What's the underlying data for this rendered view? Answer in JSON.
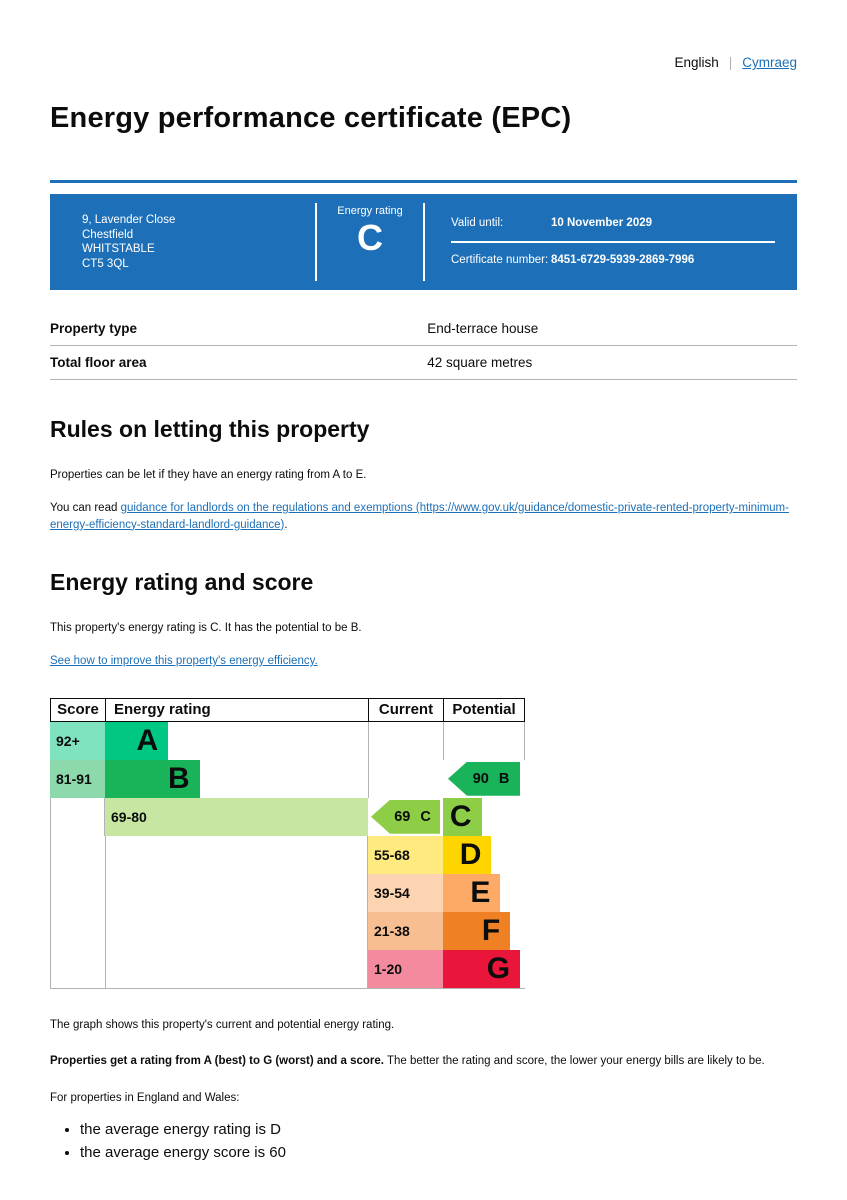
{
  "page": {
    "language_switcher": {
      "current": "English",
      "separator": "|",
      "other": "Cymraeg"
    },
    "title": "Energy performance certificate (EPC)"
  },
  "banner": {
    "background_color": "#1d70b8",
    "address_lines": [
      "9, Lavender Close",
      "Chestfield",
      "WHITSTABLE",
      "CT5 3QL"
    ],
    "energy_rating_label": "Energy rating",
    "energy_rating_value": "C",
    "valid_until_label": "Valid until:",
    "valid_until_value": "10 November 2029",
    "certificate_number_label": "Certificate number:",
    "certificate_number_value": "8451-6729-5939-2869-7996"
  },
  "summary_table": {
    "rows": [
      {
        "label": "Property type",
        "value": "End-terrace house"
      },
      {
        "label": "Total floor area",
        "value": "42 square metres"
      }
    ]
  },
  "rules_section": {
    "heading": "Rules on letting this property",
    "paragraph1": "Properties can be let if they have an energy rating from A to E.",
    "paragraph2_prefix": "You can read ",
    "paragraph2_link": "guidance for landlords on the regulations and exemptions (https://www.gov.uk/guidance/domestic-private-rented-property-minimum-energy-efficiency-standard-landlord-guidance)",
    "paragraph2_suffix": "."
  },
  "rating_section": {
    "heading": "Energy rating and score",
    "paragraph": "This property's energy rating is C. It has the potential to be B.",
    "improve_link": "See how to improve this property's energy efficiency."
  },
  "chart_data": {
    "type": "bar",
    "title": "Energy rating and score",
    "headers": [
      "Score",
      "Energy rating",
      "Current",
      "Potential"
    ],
    "bands": [
      {
        "score_range": "92+",
        "letter": "A",
        "color": "#00c781",
        "tint": "#7fe3c0",
        "bar_width_pct": 24
      },
      {
        "score_range": "81-91",
        "letter": "B",
        "color": "#19b459",
        "tint": "#8cd9ac",
        "bar_width_pct": 36
      },
      {
        "score_range": "69-80",
        "letter": "C",
        "color": "#8dce46",
        "tint": "#c6e6a2",
        "bar_width_pct": 47
      },
      {
        "score_range": "55-68",
        "letter": "D",
        "color": "#ffd500",
        "tint": "#ffea7f",
        "bar_width_pct": 59
      },
      {
        "score_range": "39-54",
        "letter": "E",
        "color": "#fcaa65",
        "tint": "#fdd4b2",
        "bar_width_pct": 70
      },
      {
        "score_range": "21-38",
        "letter": "F",
        "color": "#ef8023",
        "tint": "#f7bf91",
        "bar_width_pct": 82
      },
      {
        "score_range": "1-20",
        "letter": "G",
        "color": "#e9153b",
        "tint": "#f48a9d",
        "bar_width_pct": 94
      }
    ],
    "current": {
      "score": "69",
      "letter": "C",
      "band_index": 2,
      "color": "#8dce46"
    },
    "potential": {
      "score": "90",
      "letter": "B",
      "band_index": 1,
      "color": "#19b459"
    }
  },
  "chart_footer": {
    "graph_note": "The graph shows this property's current and potential energy rating.",
    "ratings_bold": "Properties get a rating from A (best) to G (worst) and a score.",
    "ratings_rest": " The better the rating and score, the lower your energy bills are likely to be.",
    "regions_intro": "For properties in England and Wales:",
    "bullets": [
      "the average energy rating is D",
      "the average energy score is 60"
    ]
  }
}
